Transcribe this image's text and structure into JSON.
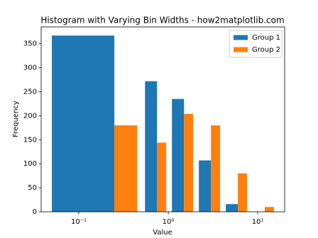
{
  "chart_data": {
    "type": "histogram",
    "title": "Histogram with Varying Bin Widths - how2matplotlib.com",
    "xlabel": "Value",
    "ylabel": "Frequency",
    "bins": [
      0,
      0.5,
      1,
      2,
      4,
      8,
      16
    ],
    "series": [
      {
        "name": "Group 1",
        "color": "#1f77b4",
        "values": [
          367,
          272,
          235,
          107,
          16,
          0
        ]
      },
      {
        "name": "Group 2",
        "color": "#ff7f0e",
        "values": [
          180,
          144,
          204,
          180,
          80,
          10
        ]
      }
    ],
    "xscale": "log",
    "xlim": [
      0.038,
      20
    ],
    "xticks": [
      {
        "value": 0.1,
        "label": "10⁻¹"
      },
      {
        "value": 1,
        "label": "10⁰"
      },
      {
        "value": 10,
        "label": "10¹"
      }
    ],
    "ylim": [
      0,
      385
    ],
    "yticks": [
      0,
      50,
      100,
      150,
      200,
      250,
      300,
      350
    ],
    "legend": "upper right"
  }
}
